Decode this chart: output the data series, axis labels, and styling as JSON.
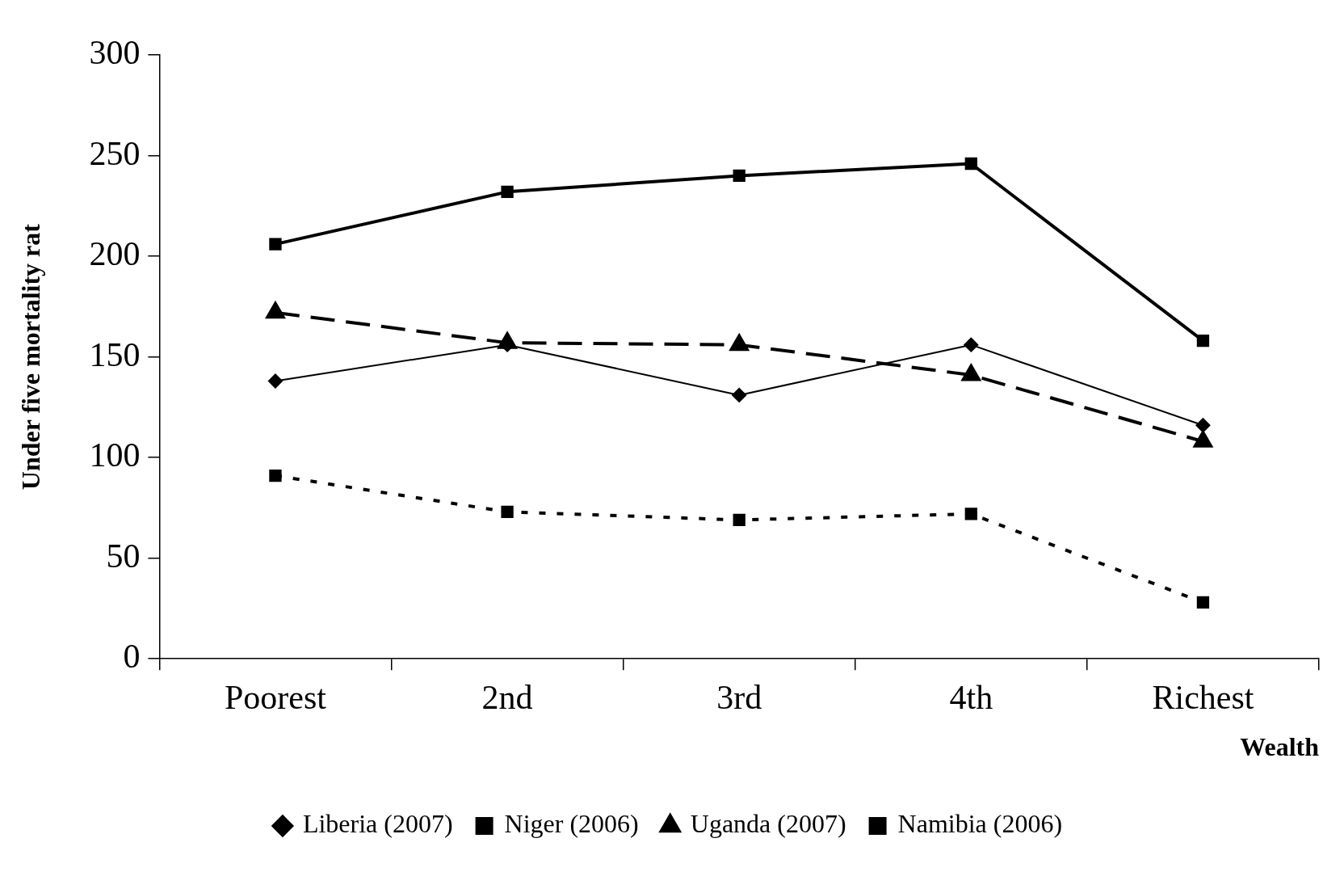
{
  "chart_data": {
    "type": "line",
    "ylabel": "Under five mortality rat",
    "xlabel": "Wealth",
    "categories": [
      "Poorest",
      "2nd",
      "3rd",
      "4th",
      "Richest"
    ],
    "series": [
      {
        "name": "Liberia (2007)",
        "color": "#000000",
        "marker": "diamond",
        "line_style": "solid",
        "values": [
          138,
          156,
          131,
          156,
          116
        ]
      },
      {
        "name": "Niger (2006)",
        "color": "#000000",
        "marker": "square",
        "line_style": "solid",
        "values": [
          206,
          232,
          240,
          246,
          158
        ]
      },
      {
        "name": "Uganda (2007)",
        "color": "#000000",
        "marker": "triangle",
        "line_style": "dashed",
        "values": [
          172,
          157,
          156,
          141,
          108
        ]
      },
      {
        "name": "Namibia (2006)",
        "color": "#000000",
        "marker": "square",
        "line_style": "dotted",
        "values": [
          91,
          73,
          69,
          72,
          28
        ]
      }
    ],
    "ylim": [
      0,
      300
    ],
    "yticks": [
      0,
      50,
      100,
      150,
      200,
      250,
      300
    ],
    "grid": false,
    "legend": "bottom"
  }
}
